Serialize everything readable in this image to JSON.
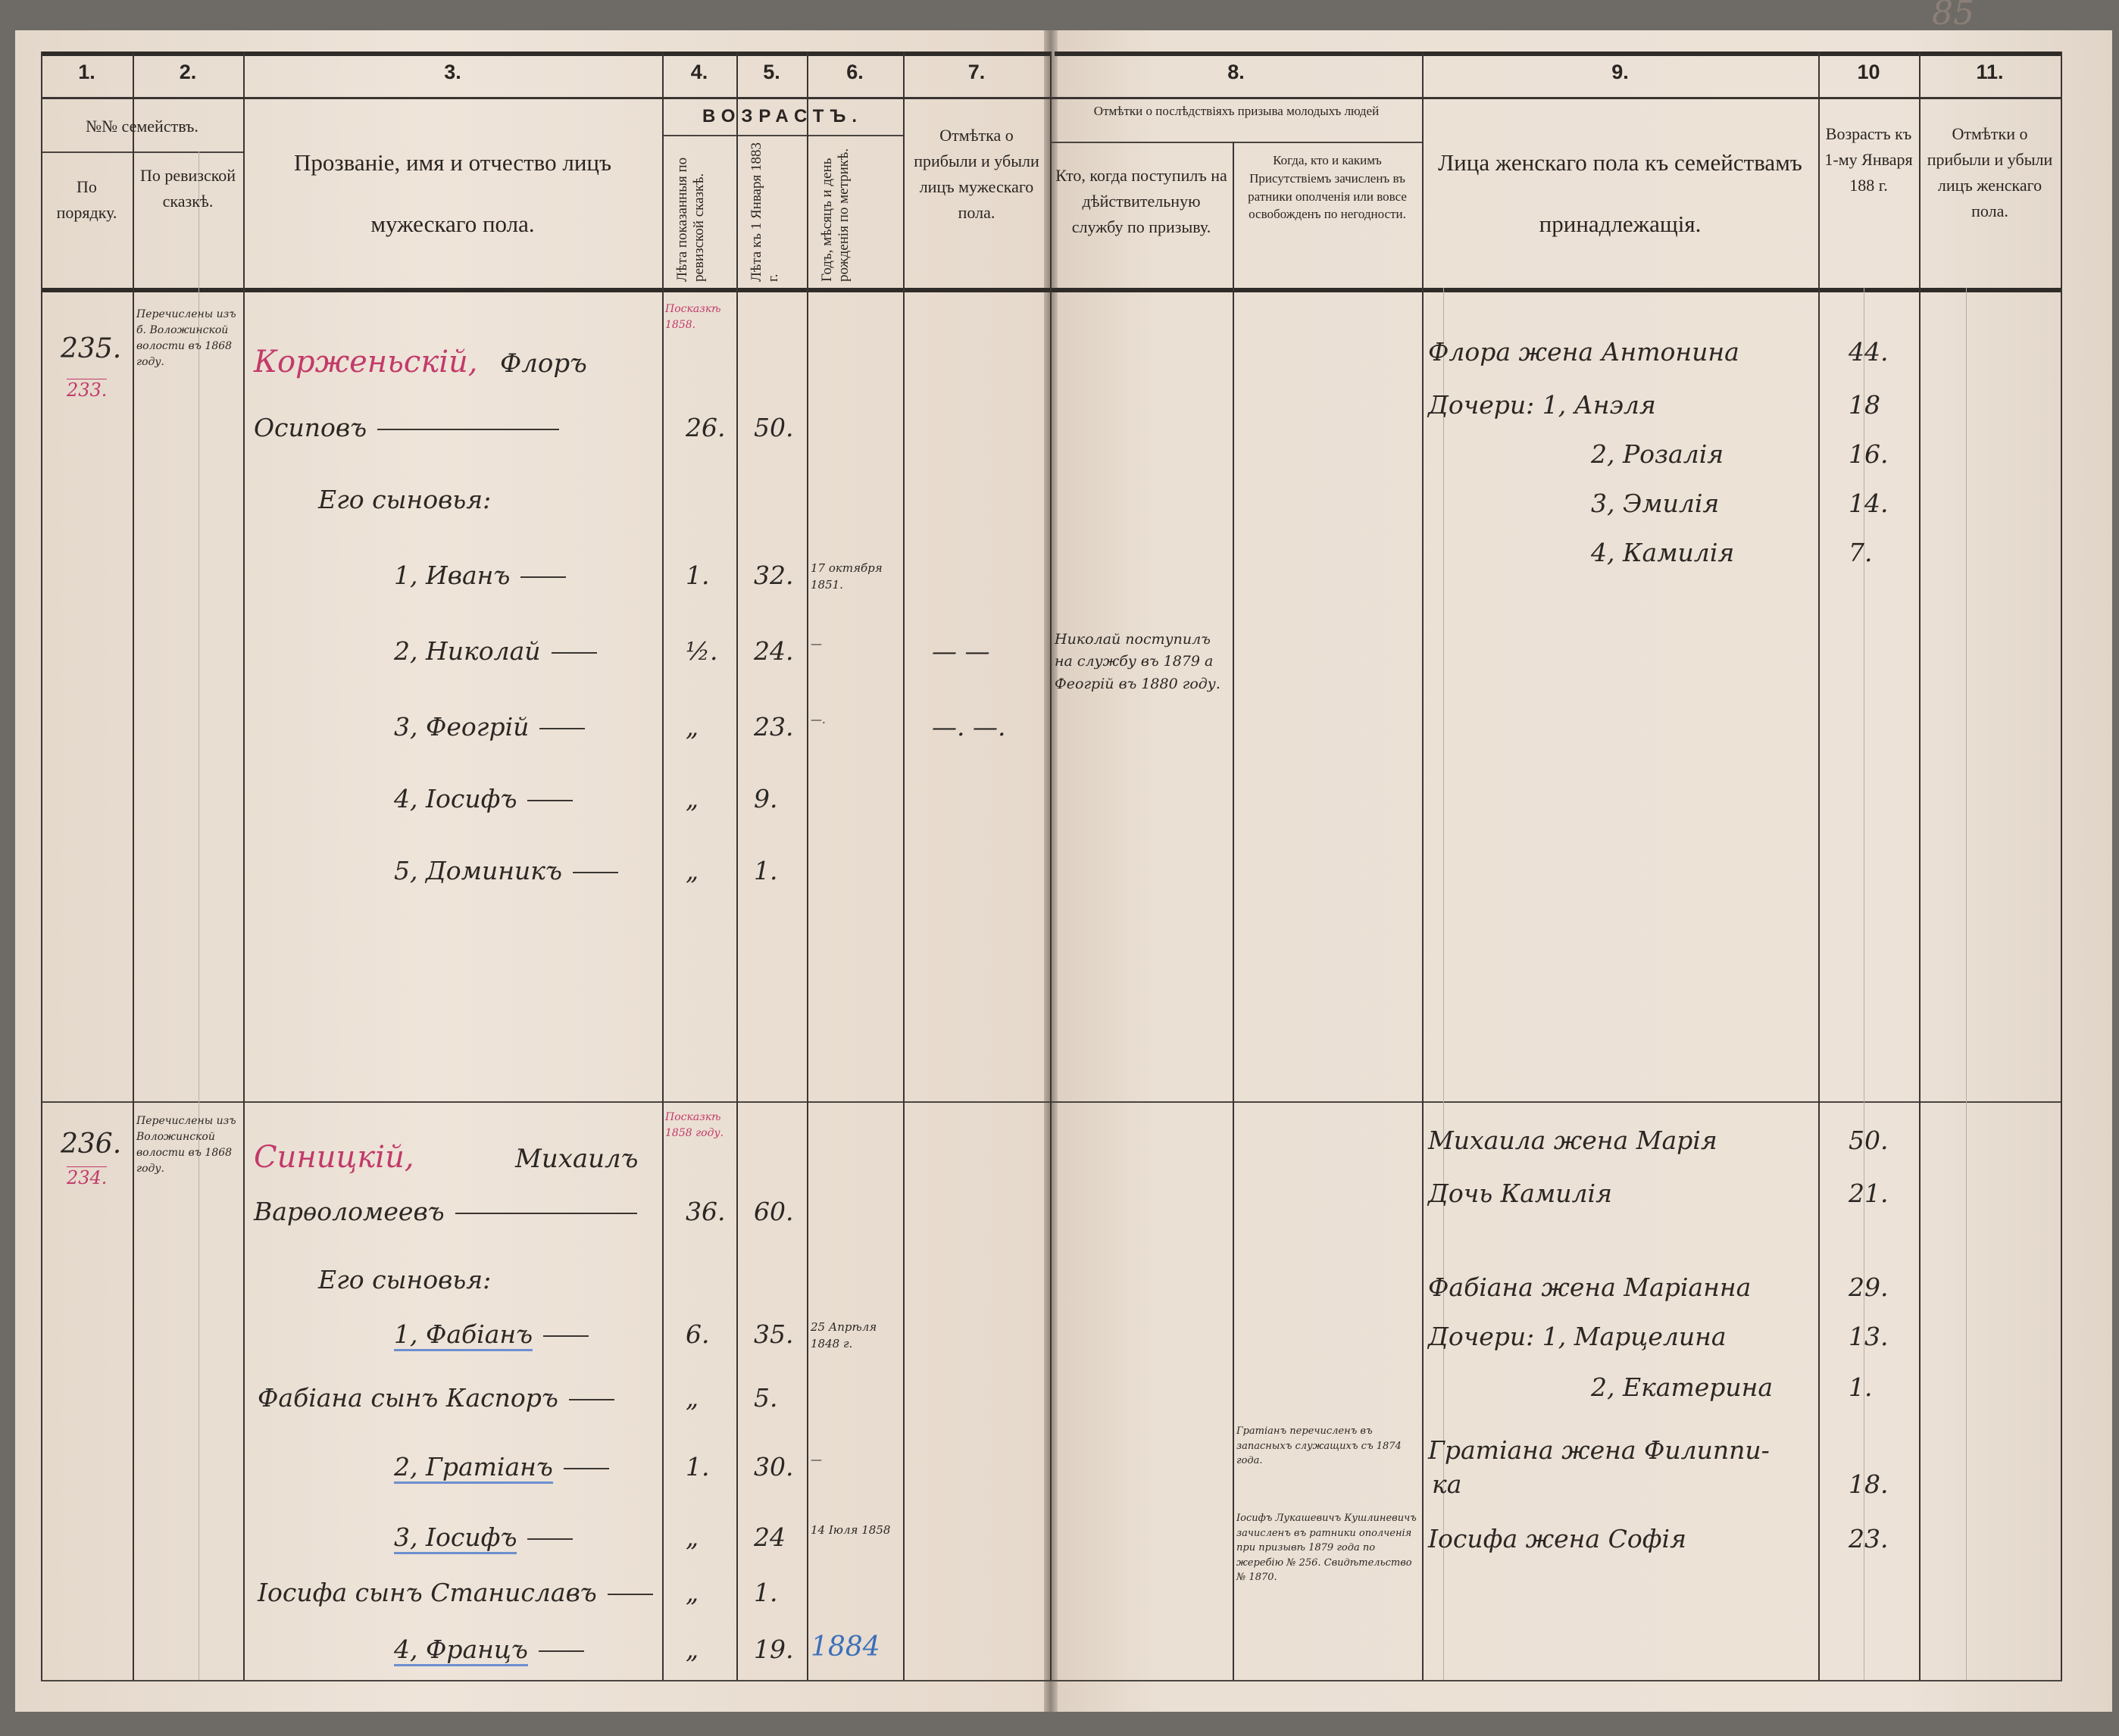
{
  "page_number": "85",
  "column_numbers": [
    "1.",
    "2.",
    "3.",
    "4.",
    "5.",
    "6.",
    "7.",
    "8.",
    "9.",
    "10",
    "11."
  ],
  "headers": {
    "families_group": "№№ семействъ.",
    "col1": "По порядку.",
    "col2": "По ревизской сказкѣ.",
    "col3": "Прозваніе, имя и отчество лицъ мужескаго пола.",
    "age_group": "ВОЗРАСТЪ.",
    "col4": "Лѣта показанныя по ревизской сказкѣ.",
    "col5": "Лѣта къ 1 Января 1883 г.",
    "col6": "Годъ, мѣсяцъ и день рожденія по метрикѣ.",
    "col7": "Отмѣтка о прибыли и убыли лицъ мужескаго пола.",
    "conscription_group": "Отмѣтки о послѣдствіяхъ призыва молодыхъ людей",
    "col8a": "Кто, когда поступилъ на дѣйствительную службу по призыву.",
    "col8b": "Когда, кто и какимъ Присутствіемъ зачисленъ въ ратники ополченія или вовсе освобожденъ по негодности.",
    "col9": "Лица женскаго пола къ семействамъ принадлежащія.",
    "col10": "Возрастъ къ 1-му Января 188  г.",
    "col11": "Отмѣтки о прибыли и убыли лицъ женскаго пола."
  },
  "families": [
    {
      "number": "235.",
      "revision_number": "233.",
      "transfer_note": "Перечислены изъ б. Воложинской волости въ 1868 году.",
      "census_note": "Посказкѣ 1858.",
      "head_surname": "Корженьскій,",
      "head_name": "Флоръ",
      "males": [
        {
          "name": "Осиповъ",
          "rev_age": "26.",
          "age": "50.",
          "birth": "",
          "remark": ""
        },
        {
          "name": "Его сыновья:",
          "rev_age": "",
          "age": "",
          "birth": "",
          "remark": ""
        },
        {
          "name": "1, Иванъ",
          "rev_age": "1.",
          "age": "32.",
          "birth": "17 октября 1851.",
          "remark": ""
        },
        {
          "name": "2, Николай",
          "rev_age": "½.",
          "age": "24.",
          "birth": "—",
          "remark": "— —"
        },
        {
          "name": "3, Феогрій",
          "rev_age": "„",
          "age": "23.",
          "birth": "—.",
          "remark": "—. —."
        },
        {
          "name": "4, Іосифъ",
          "rev_age": "„",
          "age": "9.",
          "birth": "",
          "remark": ""
        },
        {
          "name": "5, Доминикъ",
          "rev_age": "„",
          "age": "1.",
          "birth": "",
          "remark": ""
        }
      ],
      "service_note": "Николай поступилъ на службу въ 1879 а Феогрій въ 1880 году.",
      "militia_notes": [],
      "females": [
        {
          "name": "Флора жена Антонина",
          "age": "44."
        },
        {
          "name": "Дочери: 1, Анэля",
          "age": "18"
        },
        {
          "name": "2, Розалія",
          "age": "16."
        },
        {
          "name": "3, Эмилія",
          "age": "14."
        },
        {
          "name": "4, Камилія",
          "age": "7."
        }
      ]
    },
    {
      "number": "236.",
      "revision_number": "234.",
      "transfer_note": "Перечислены изъ Воложинской волости въ 1868 году.",
      "census_note": "Посказкѣ 1858 году.",
      "head_surname": "Синицкій,",
      "head_name": "Михаилъ",
      "males": [
        {
          "name": "Варѳоломеевъ",
          "rev_age": "36.",
          "age": "60.",
          "birth": "",
          "remark": ""
        },
        {
          "name": "Его сыновья:",
          "rev_age": "",
          "age": "",
          "birth": "",
          "remark": ""
        },
        {
          "name": "1, Фабіанъ",
          "rev_age": "6.",
          "age": "35.",
          "birth": "25 Апрѣля 1848 г.",
          "remark": ""
        },
        {
          "name": "Фабіана сынъ Каспоръ",
          "rev_age": "„",
          "age": "5.",
          "birth": "",
          "remark": ""
        },
        {
          "name": "2, Гратіанъ",
          "rev_age": "1.",
          "age": "30.",
          "birth": "—",
          "remark": ""
        },
        {
          "name": "3, Іосифъ",
          "rev_age": "„",
          "age": "24",
          "birth": "14 Іюля 1858",
          "remark": ""
        },
        {
          "name": "Іосифа сынъ Станиславъ",
          "rev_age": "„",
          "age": "1.",
          "birth": "",
          "remark": ""
        },
        {
          "name": "4, Францъ",
          "rev_age": "„",
          "age": "19.",
          "birth": "1884",
          "remark": ""
        }
      ],
      "service_note": "",
      "militia_notes": [
        "Гратіанъ перечисленъ въ запасныхъ служащихъ съ 1874 года.",
        "Іосифъ Лукашевичъ Кушлиневичъ зачисленъ въ ратники ополченія при призывѣ 1879 года по жеребію № 256. Свидѣтельство № 1870."
      ],
      "females": [
        {
          "name": "Михаила жена Марія",
          "age": "50."
        },
        {
          "name": "Дочь Камилія",
          "age": "21."
        },
        {
          "name": "Фабіана жена Маріанна",
          "age": "29."
        },
        {
          "name": "Дочери: 1, Марцелина",
          "age": "13."
        },
        {
          "name": "2, Екатерина",
          "age": "1."
        },
        {
          "name": "Гратіана жена Филиппи-",
          "age": ""
        },
        {
          "name": "ка",
          "age": "18."
        },
        {
          "name": "Іосифа жена Софія",
          "age": "23."
        }
      ]
    }
  ],
  "colors": {
    "paper": "#eadfd3",
    "ink": "#2b2724",
    "red_ink": "#c23a6a",
    "blue_pencil": "#3c6fb8"
  }
}
